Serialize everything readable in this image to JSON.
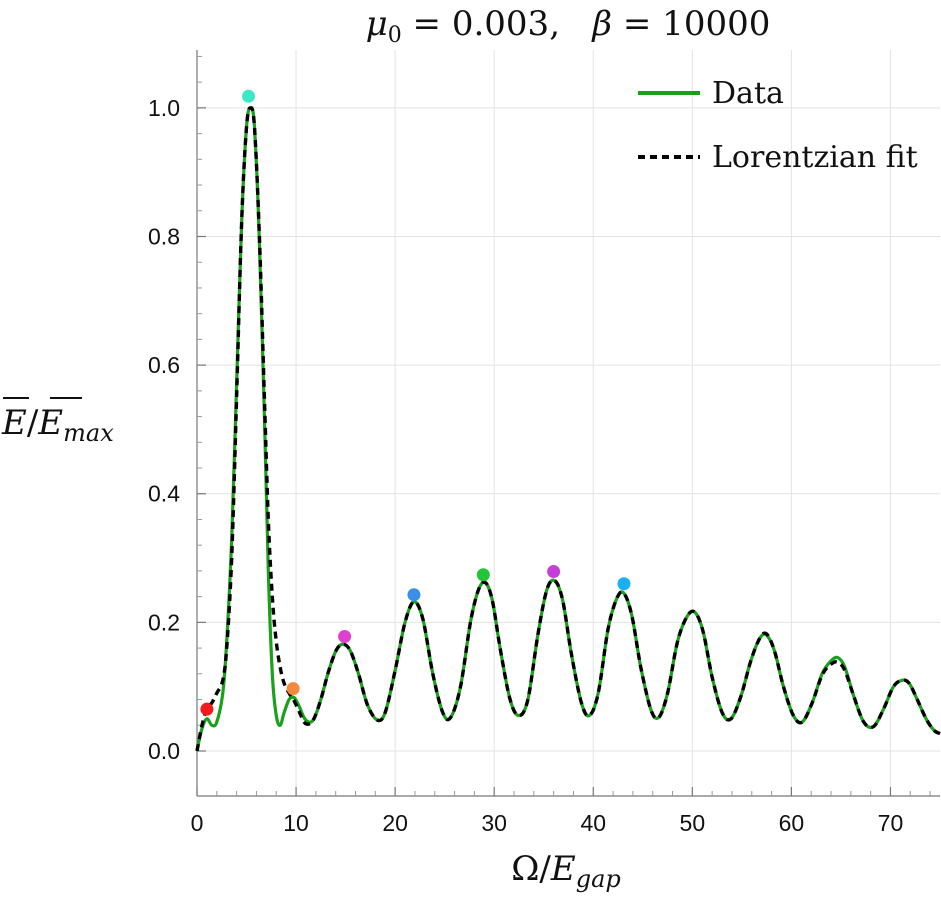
{
  "chart_data": {
    "type": "line",
    "title": "μ0 = 0.003,   β = 10000",
    "title_parts": {
      "mu": "μ",
      "mu_sub": "0",
      "mu_value": " = 0.003,   ",
      "beta": "β",
      "beta_value": " = 10000"
    },
    "xlabel": "Ω/Egap",
    "xlabel_parts": {
      "omega": "Ω/",
      "E": "E",
      "sub": "gap"
    },
    "ylabel": "E/Emax",
    "ylabel_parts": {
      "E1": "E",
      "slash": "/",
      "E2": "E",
      "sub": "max"
    },
    "xlim": [
      0,
      75
    ],
    "ylim": [
      -0.07,
      1.09
    ],
    "x_ticks": [
      0,
      10,
      20,
      30,
      40,
      50,
      60,
      70
    ],
    "x_tick_labels": [
      "0",
      "10",
      "20",
      "30",
      "40",
      "50",
      "60",
      "70"
    ],
    "y_ticks": [
      0.0,
      0.2,
      0.4,
      0.6,
      0.8,
      1.0
    ],
    "y_tick_labels": [
      "0.0",
      "0.2",
      "0.4",
      "0.6",
      "0.8",
      "1.0"
    ],
    "x_grid": [
      0,
      10,
      20,
      30,
      40,
      50,
      60,
      70
    ],
    "y_grid": [
      0.0,
      0.2,
      0.4,
      0.6,
      0.8,
      1.0
    ],
    "legend_position": "top-right",
    "series": [
      {
        "name": "Data",
        "style": "solid",
        "color": "#1aa01a",
        "points": [
          [
            0,
            0
          ],
          [
            0.5,
            0.035
          ],
          [
            1.0,
            0.05
          ],
          [
            1.5,
            0.04
          ],
          [
            2.0,
            0.045
          ],
          [
            2.6,
            0.09
          ],
          [
            3.0,
            0.17
          ],
          [
            3.5,
            0.33
          ],
          [
            4.0,
            0.57
          ],
          [
            4.5,
            0.82
          ],
          [
            5.0,
            0.97
          ],
          [
            5.4,
            1.0
          ],
          [
            5.8,
            0.97
          ],
          [
            6.3,
            0.79
          ],
          [
            6.8,
            0.52
          ],
          [
            7.2,
            0.28
          ],
          [
            7.6,
            0.12
          ],
          [
            8.0,
            0.055
          ],
          [
            8.4,
            0.04
          ],
          [
            8.8,
            0.06
          ],
          [
            9.3,
            0.08
          ],
          [
            9.8,
            0.083
          ],
          [
            10.3,
            0.07
          ],
          [
            10.8,
            0.052
          ],
          [
            11.3,
            0.045
          ],
          [
            11.8,
            0.05
          ],
          [
            12.5,
            0.08
          ],
          [
            13.3,
            0.125
          ],
          [
            14.1,
            0.158
          ],
          [
            14.8,
            0.166
          ],
          [
            15.5,
            0.155
          ],
          [
            16.3,
            0.12
          ],
          [
            17.2,
            0.072
          ],
          [
            18.2,
            0.048
          ],
          [
            19.0,
            0.06
          ],
          [
            20.0,
            0.125
          ],
          [
            21.0,
            0.2
          ],
          [
            21.9,
            0.232
          ],
          [
            22.8,
            0.205
          ],
          [
            23.8,
            0.12
          ],
          [
            24.8,
            0.06
          ],
          [
            25.6,
            0.052
          ],
          [
            26.6,
            0.1
          ],
          [
            27.6,
            0.2
          ],
          [
            28.4,
            0.25
          ],
          [
            29.1,
            0.262
          ],
          [
            29.8,
            0.235
          ],
          [
            30.6,
            0.16
          ],
          [
            31.6,
            0.08
          ],
          [
            32.5,
            0.055
          ],
          [
            33.4,
            0.08
          ],
          [
            34.4,
            0.18
          ],
          [
            35.3,
            0.25
          ],
          [
            36.1,
            0.265
          ],
          [
            36.9,
            0.235
          ],
          [
            37.8,
            0.15
          ],
          [
            38.8,
            0.075
          ],
          [
            39.6,
            0.055
          ],
          [
            40.5,
            0.09
          ],
          [
            41.5,
            0.19
          ],
          [
            42.4,
            0.238
          ],
          [
            43.1,
            0.245
          ],
          [
            43.9,
            0.21
          ],
          [
            44.8,
            0.13
          ],
          [
            45.8,
            0.065
          ],
          [
            46.6,
            0.052
          ],
          [
            47.5,
            0.09
          ],
          [
            48.5,
            0.17
          ],
          [
            49.5,
            0.21
          ],
          [
            50.3,
            0.215
          ],
          [
            51.1,
            0.185
          ],
          [
            52.0,
            0.115
          ],
          [
            53.0,
            0.06
          ],
          [
            53.9,
            0.05
          ],
          [
            54.9,
            0.085
          ],
          [
            55.9,
            0.14
          ],
          [
            56.8,
            0.175
          ],
          [
            57.5,
            0.18
          ],
          [
            58.3,
            0.155
          ],
          [
            59.2,
            0.1
          ],
          [
            60.2,
            0.055
          ],
          [
            61.1,
            0.045
          ],
          [
            62.1,
            0.075
          ],
          [
            63.1,
            0.12
          ],
          [
            64.0,
            0.14
          ],
          [
            64.7,
            0.145
          ],
          [
            65.4,
            0.13
          ],
          [
            66.3,
            0.085
          ],
          [
            67.3,
            0.045
          ],
          [
            68.3,
            0.038
          ],
          [
            69.3,
            0.065
          ],
          [
            70.3,
            0.1
          ],
          [
            71.2,
            0.11
          ],
          [
            71.9,
            0.105
          ],
          [
            72.7,
            0.08
          ],
          [
            73.6,
            0.05
          ],
          [
            74.4,
            0.032
          ],
          [
            75.0,
            0.027
          ]
        ]
      },
      {
        "name": "Lorentzian fit",
        "style": "dashed",
        "color": "#000000",
        "points": [
          [
            0,
            0
          ],
          [
            0.5,
            0.04
          ],
          [
            1.0,
            0.065
          ],
          [
            1.5,
            0.075
          ],
          [
            2.0,
            0.09
          ],
          [
            2.6,
            0.11
          ],
          [
            3.0,
            0.16
          ],
          [
            3.5,
            0.3
          ],
          [
            4.0,
            0.55
          ],
          [
            4.5,
            0.82
          ],
          [
            5.0,
            0.97
          ],
          [
            5.4,
            1.0
          ],
          [
            5.8,
            0.97
          ],
          [
            6.3,
            0.8
          ],
          [
            6.8,
            0.55
          ],
          [
            7.2,
            0.36
          ],
          [
            7.6,
            0.24
          ],
          [
            8.0,
            0.17
          ],
          [
            8.4,
            0.13
          ],
          [
            8.8,
            0.105
          ],
          [
            9.3,
            0.09
          ],
          [
            9.8,
            0.078
          ],
          [
            10.3,
            0.062
          ],
          [
            10.8,
            0.045
          ],
          [
            11.3,
            0.042
          ],
          [
            11.8,
            0.05
          ],
          [
            12.5,
            0.08
          ],
          [
            13.3,
            0.125
          ],
          [
            14.1,
            0.158
          ],
          [
            14.8,
            0.166
          ],
          [
            15.5,
            0.155
          ],
          [
            16.3,
            0.12
          ],
          [
            17.2,
            0.072
          ],
          [
            18.2,
            0.048
          ],
          [
            19.0,
            0.06
          ],
          [
            20.0,
            0.125
          ],
          [
            21.0,
            0.2
          ],
          [
            21.9,
            0.232
          ],
          [
            22.8,
            0.205
          ],
          [
            23.8,
            0.12
          ],
          [
            24.8,
            0.06
          ],
          [
            25.6,
            0.052
          ],
          [
            26.6,
            0.1
          ],
          [
            27.6,
            0.2
          ],
          [
            28.4,
            0.25
          ],
          [
            29.1,
            0.262
          ],
          [
            29.8,
            0.235
          ],
          [
            30.6,
            0.16
          ],
          [
            31.6,
            0.08
          ],
          [
            32.5,
            0.055
          ],
          [
            33.4,
            0.08
          ],
          [
            34.4,
            0.18
          ],
          [
            35.3,
            0.25
          ],
          [
            36.1,
            0.265
          ],
          [
            36.9,
            0.235
          ],
          [
            37.8,
            0.15
          ],
          [
            38.8,
            0.075
          ],
          [
            39.6,
            0.055
          ],
          [
            40.5,
            0.09
          ],
          [
            41.5,
            0.19
          ],
          [
            42.4,
            0.238
          ],
          [
            43.1,
            0.245
          ],
          [
            43.9,
            0.21
          ],
          [
            44.8,
            0.13
          ],
          [
            45.8,
            0.065
          ],
          [
            46.6,
            0.052
          ],
          [
            47.5,
            0.09
          ],
          [
            48.5,
            0.17
          ],
          [
            49.5,
            0.21
          ],
          [
            50.3,
            0.215
          ],
          [
            51.1,
            0.185
          ],
          [
            52.0,
            0.115
          ],
          [
            53.0,
            0.06
          ],
          [
            53.9,
            0.05
          ],
          [
            54.9,
            0.085
          ],
          [
            55.9,
            0.14
          ],
          [
            56.8,
            0.175
          ],
          [
            57.5,
            0.182
          ],
          [
            58.3,
            0.155
          ],
          [
            59.2,
            0.1
          ],
          [
            60.2,
            0.055
          ],
          [
            61.1,
            0.045
          ],
          [
            62.1,
            0.075
          ],
          [
            63.1,
            0.118
          ],
          [
            64.0,
            0.135
          ],
          [
            64.7,
            0.138
          ],
          [
            65.4,
            0.125
          ],
          [
            66.3,
            0.085
          ],
          [
            67.3,
            0.045
          ],
          [
            68.3,
            0.038
          ],
          [
            69.3,
            0.065
          ],
          [
            70.3,
            0.1
          ],
          [
            71.2,
            0.11
          ],
          [
            71.9,
            0.105
          ],
          [
            72.7,
            0.08
          ],
          [
            73.6,
            0.05
          ],
          [
            74.4,
            0.032
          ],
          [
            75.0,
            0.027
          ]
        ]
      }
    ],
    "markers": [
      {
        "x": 1.0,
        "y": 0.065,
        "color": "#ee1c1c"
      },
      {
        "x": 5.2,
        "y": 1.018,
        "color": "#3de8c8"
      },
      {
        "x": 9.7,
        "y": 0.097,
        "color": "#f5893d"
      },
      {
        "x": 14.9,
        "y": 0.178,
        "color": "#e040d0"
      },
      {
        "x": 21.9,
        "y": 0.243,
        "color": "#3a8fe8"
      },
      {
        "x": 28.9,
        "y": 0.274,
        "color": "#22c43a"
      },
      {
        "x": 36.0,
        "y": 0.279,
        "color": "#c63ed8"
      },
      {
        "x": 43.1,
        "y": 0.26,
        "color": "#1ab0f0"
      }
    ]
  }
}
